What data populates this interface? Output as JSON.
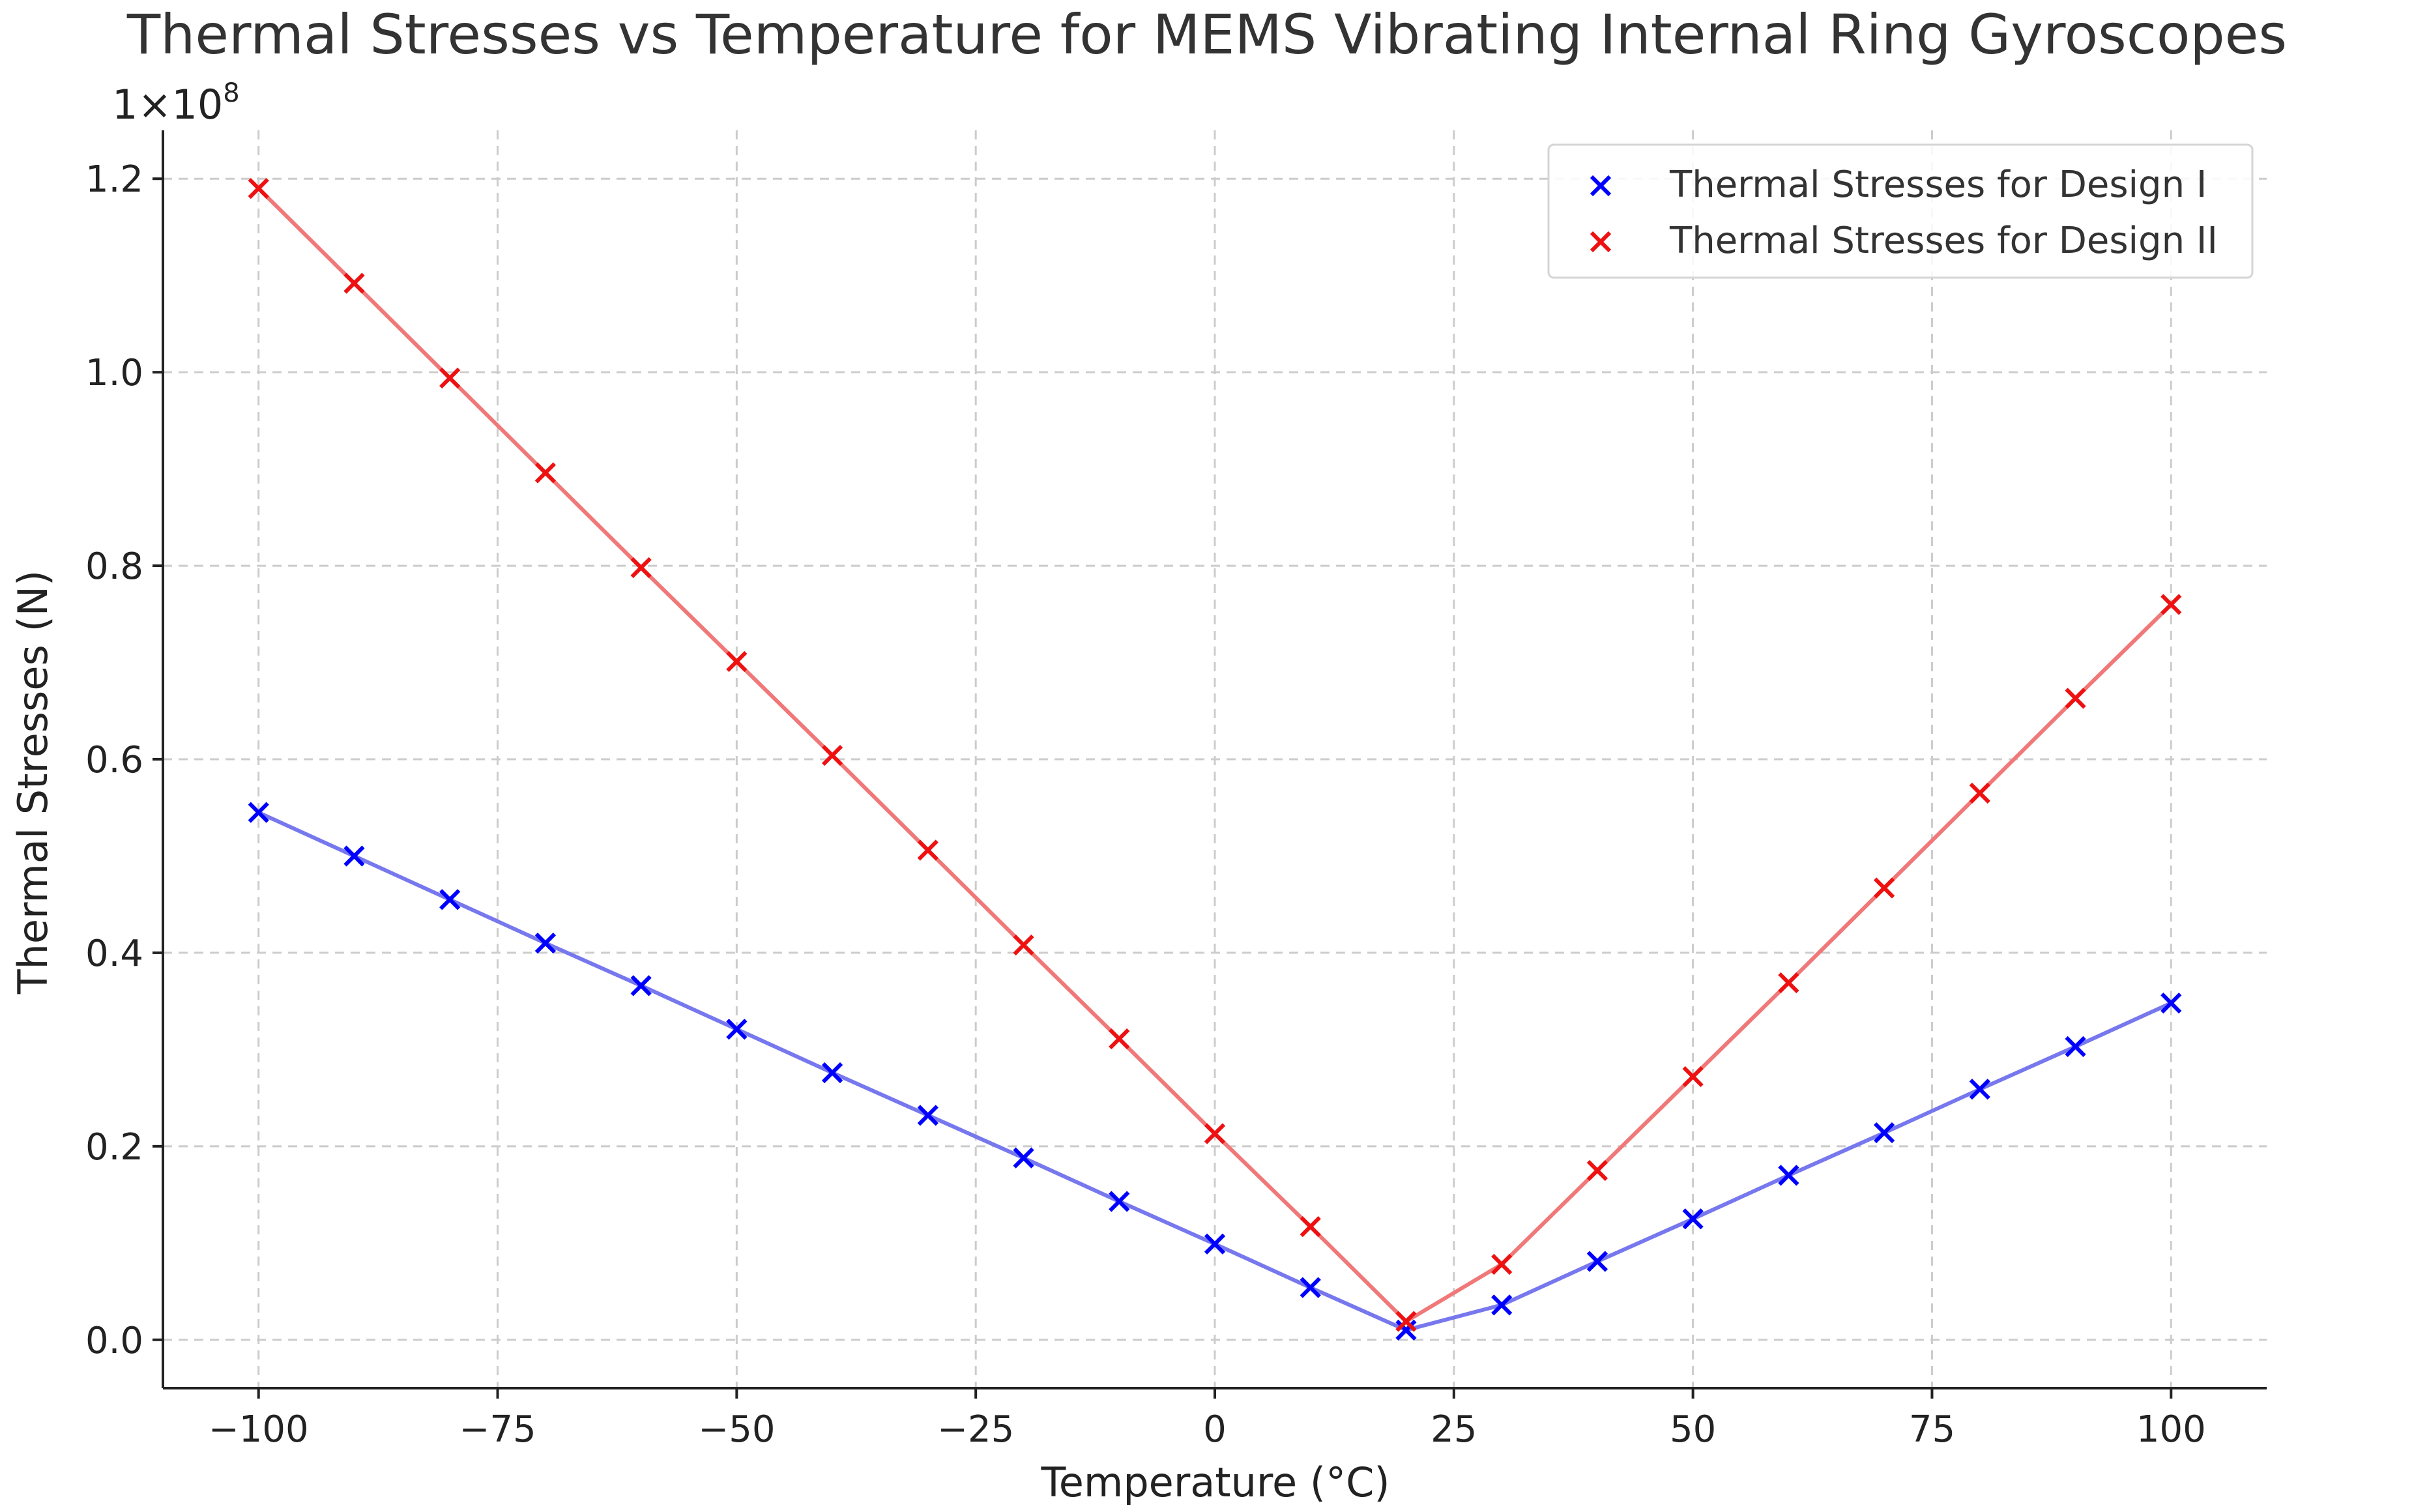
{
  "chart_data": {
    "type": "line",
    "title": "Thermal Stresses vs Temperature for MEMS Vibrating Internal Ring Gyroscopes",
    "xlabel": "Temperature (°C)",
    "ylabel": "Thermal Stresses (N)",
    "y_multiplier_label": "1×10",
    "y_multiplier_exponent": "8",
    "xlim": [
      -110,
      110
    ],
    "ylim": [
      -0.05,
      1.25
    ],
    "x_ticks": [
      -100,
      -75,
      -50,
      -25,
      0,
      25,
      50,
      75,
      100
    ],
    "x_tick_labels": [
      "−100",
      "−75",
      "−50",
      "−25",
      "0",
      "25",
      "50",
      "75",
      "100"
    ],
    "y_ticks": [
      0.0,
      0.2,
      0.4,
      0.6,
      0.8,
      1.0,
      1.2
    ],
    "y_tick_labels": [
      "0.0",
      "0.2",
      "0.4",
      "0.6",
      "0.8",
      "1.0",
      "1.2"
    ],
    "grid": true,
    "legend_position": "top-right",
    "x": [
      -100,
      -90,
      -80,
      -70,
      -60,
      -50,
      -40,
      -30,
      -20,
      -10,
      0,
      10,
      20,
      30,
      40,
      50,
      60,
      70,
      80,
      90,
      100
    ],
    "series": [
      {
        "name": "Thermal Stresses for Design I",
        "color": "#0000ff",
        "line_color": "#7777ee",
        "marker": "x",
        "values": [
          0.545,
          0.5,
          0.455,
          0.41,
          0.366,
          0.321,
          0.276,
          0.232,
          0.188,
          0.143,
          0.099,
          0.054,
          0.01,
          0.036,
          0.081,
          0.125,
          0.17,
          0.214,
          0.259,
          0.303,
          0.348
        ]
      },
      {
        "name": "Thermal Stresses for Design II",
        "color": "#ee1111",
        "line_color": "#f07878",
        "marker": "x",
        "values": [
          1.19,
          1.092,
          0.994,
          0.896,
          0.798,
          0.701,
          0.604,
          0.506,
          0.408,
          0.311,
          0.213,
          0.117,
          0.019,
          0.078,
          0.175,
          0.272,
          0.369,
          0.467,
          0.565,
          0.663,
          0.76
        ]
      }
    ]
  }
}
